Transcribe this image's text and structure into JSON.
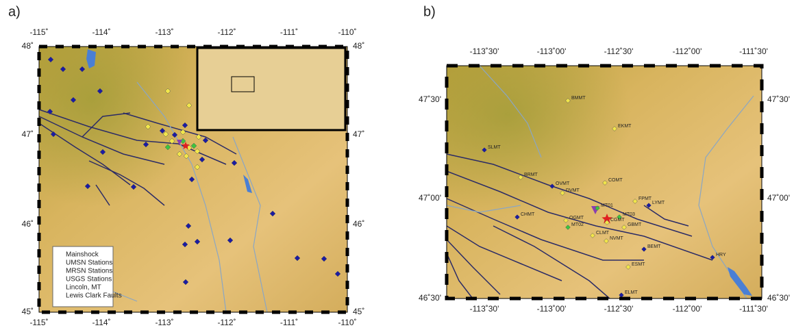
{
  "panels": [
    {
      "label": "a)",
      "top_ticks": [
        "-115˚",
        "-114˚",
        "-113˚",
        "-112˚",
        "-111˚",
        "-110˚"
      ],
      "bottom_ticks": [
        "-115˚",
        "-114˚",
        "-113˚",
        "-112˚",
        "-111˚",
        "-110˚"
      ],
      "left_ticks": [
        "48˚",
        "47˚",
        "46˚",
        "45˚"
      ],
      "right_ticks": [
        "48˚",
        "47˚",
        "46˚",
        "45˚"
      ],
      "legend": [
        "Mainshock",
        "UMSN Stations",
        "MRSN Stations",
        "USGS Stations",
        "Lincoln, MT",
        "Lewis Clark Faults"
      ]
    },
    {
      "label": "b)",
      "top_ticks": [
        "-113˚30'",
        "-113˚00'",
        "-112˚30'",
        "-112˚00'",
        "-111˚30'"
      ],
      "bottom_ticks": [
        "-113˚30'",
        "-113˚00'",
        "-112˚30'",
        "-112˚00'",
        "-111˚30'"
      ],
      "left_ticks": [
        "47˚30'",
        "47˚00'",
        "46˚30'"
      ],
      "right_ticks": [
        "47˚30'",
        "47˚00'",
        "46˚30'"
      ],
      "stations": [
        "BMMT",
        "EKMT",
        "SLMT",
        "BRMT",
        "OVMT",
        "DVMT",
        "COMT",
        "FPMT",
        "LYMT",
        "MT01",
        "CHMT",
        "OGMT",
        "MT02",
        "MT03",
        "CGMT",
        "GBMT",
        "CLMT",
        "NVMT",
        "BEMT",
        "HRY",
        "ESMT",
        "ELMT"
      ]
    }
  ]
}
